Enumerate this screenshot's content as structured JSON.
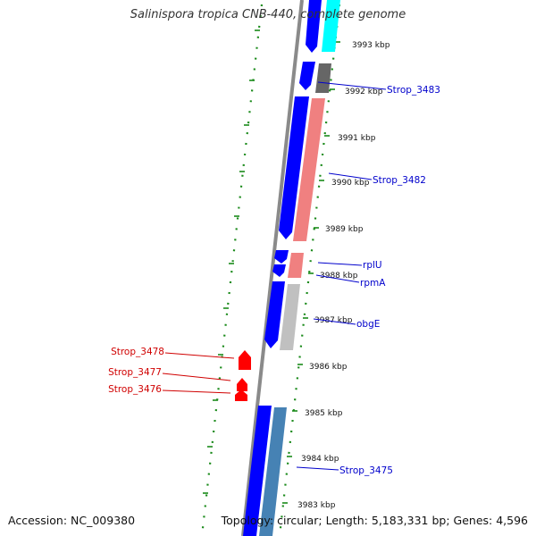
{
  "header": {
    "title": "Salinispora tropica CNB-440, complete genome"
  },
  "footer": {
    "accession": "Accession: NC_009380",
    "summary": "Topology: circular; Length: 5,183,331 bp; Genes: 4,596"
  },
  "colors": {
    "backbone": "#8a8a8a",
    "tick_dots": "#1a8a1a",
    "strand_forward": "#0000ff",
    "label_forward": "#0000cc",
    "label_reverse": "#d00000",
    "cyan": "#00ffff",
    "dark_gray": "#666666",
    "salmon": "#f08080",
    "light_gray": "#c0c0c0",
    "steel_blue": "#4682b4",
    "red": "#ff0000"
  },
  "ticks": [
    "3993 kbp",
    "3992 kbp",
    "3991 kbp",
    "3990 kbp",
    "3989 kbp",
    "3988 kbp",
    "3987 kbp",
    "3986 kbp",
    "3985 kbp",
    "3984 kbp",
    "3983 kbp"
  ],
  "gene_labels": {
    "forward": [
      "Strop_3483",
      "Strop_3482",
      "rplU",
      "rpmA",
      "obgE",
      "Strop_3475"
    ],
    "reverse": [
      "Strop_3478",
      "Strop_3477",
      "Strop_3476"
    ]
  }
}
